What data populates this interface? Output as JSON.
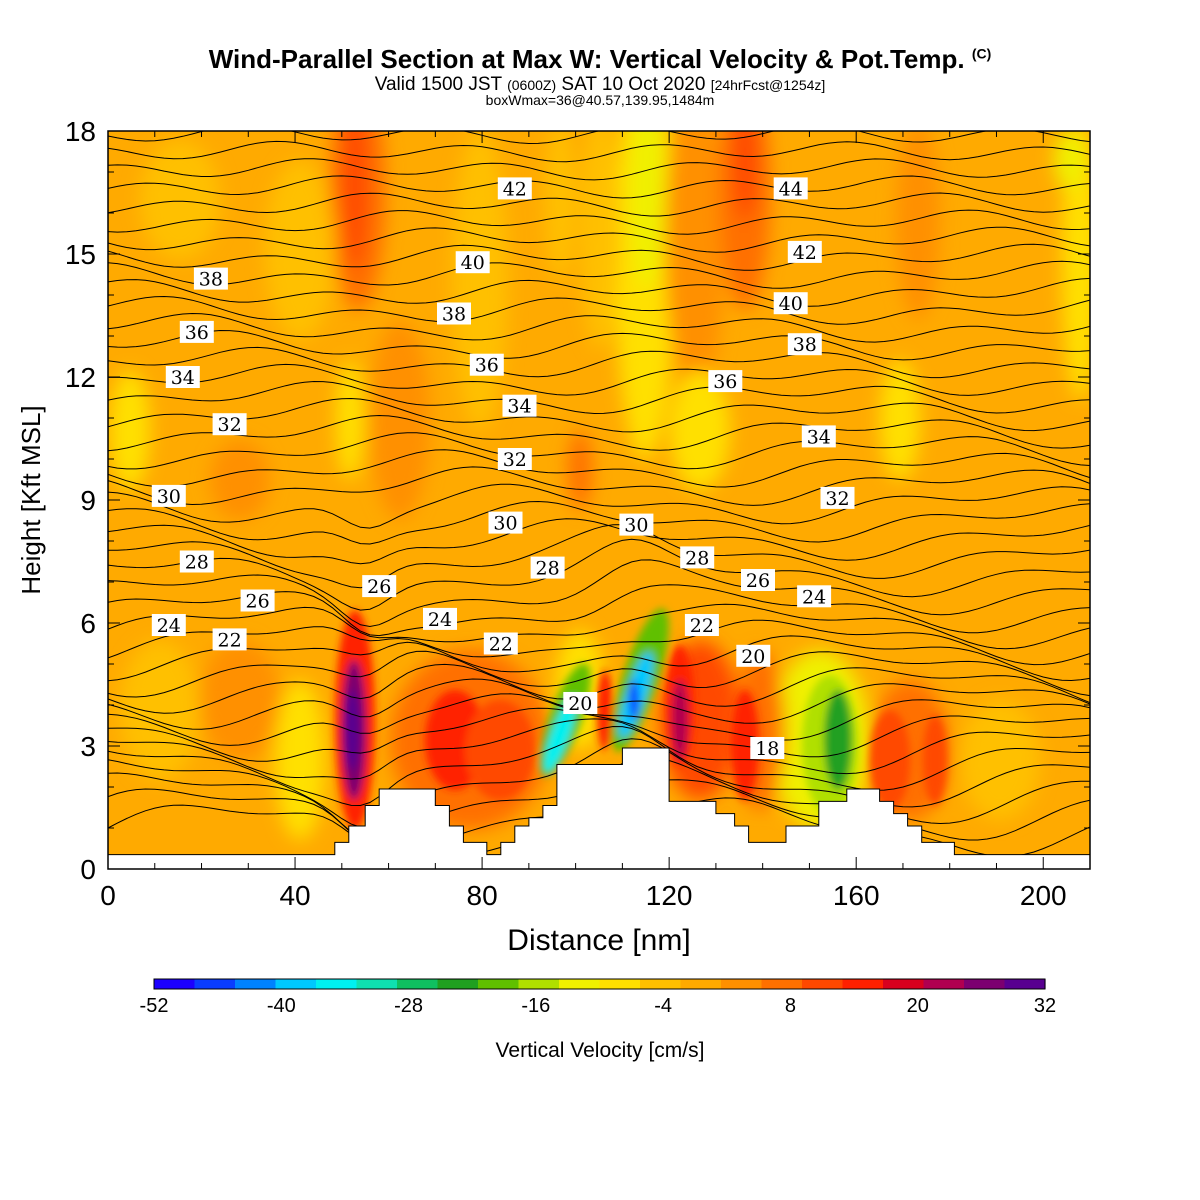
{
  "header": {
    "title_main": "Wind-Parallel Section at Max W: Vertical Velocity & Pot.Temp.",
    "title_mark": "(C)",
    "valid_a": "Valid 1500 JST",
    "valid_b": "(0600Z)",
    "valid_c": "SAT 10 Oct 2020",
    "valid_d": "[24hrFcst@1254z]",
    "box_info": "boxWmax=36@40.57,139.95,1484m"
  },
  "chart_data": {
    "type": "heatmap",
    "xlabel": "Distance [nm]",
    "ylabel": "Height [Kft MSL]",
    "xlim": [
      0,
      210
    ],
    "ylim": [
      0,
      18
    ],
    "xticks": [
      0,
      40,
      80,
      120,
      160,
      200
    ],
    "yticks": [
      0,
      3,
      6,
      9,
      12,
      15,
      18
    ],
    "colorbar": {
      "label": "Vertical Velocity [cm/s]",
      "ticks": [
        -52,
        -40,
        -28,
        -16,
        -4,
        8,
        20,
        32
      ],
      "colors": [
        "#1c00ff",
        "#0a3cff",
        "#0082ff",
        "#00c8ff",
        "#00f0f0",
        "#10e0b0",
        "#10c060",
        "#20a020",
        "#60c000",
        "#b0e000",
        "#f0f000",
        "#ffe000",
        "#ffc000",
        "#ffaa00",
        "#ff9000",
        "#ff7000",
        "#ff4800",
        "#ff2000",
        "#d8001e",
        "#b00050",
        "#7c0070",
        "#580090"
      ]
    },
    "isentrope_labels": [
      {
        "text": "42",
        "x": 87,
        "y": 16.6
      },
      {
        "text": "44",
        "x": 146,
        "y": 16.6
      },
      {
        "text": "40",
        "x": 78,
        "y": 14.8
      },
      {
        "text": "42",
        "x": 149,
        "y": 15.05
      },
      {
        "text": "38",
        "x": 22,
        "y": 14.4
      },
      {
        "text": "40",
        "x": 146,
        "y": 13.8
      },
      {
        "text": "38",
        "x": 74,
        "y": 13.55
      },
      {
        "text": "36",
        "x": 19,
        "y": 13.1
      },
      {
        "text": "38",
        "x": 149,
        "y": 12.8
      },
      {
        "text": "36",
        "x": 81,
        "y": 12.3
      },
      {
        "text": "34",
        "x": 16,
        "y": 12.0
      },
      {
        "text": "36",
        "x": 132,
        "y": 11.9
      },
      {
        "text": "34",
        "x": 88,
        "y": 11.3
      },
      {
        "text": "32",
        "x": 26,
        "y": 10.85
      },
      {
        "text": "34",
        "x": 152,
        "y": 10.55
      },
      {
        "text": "32",
        "x": 87,
        "y": 10.0
      },
      {
        "text": "30",
        "x": 13,
        "y": 9.1
      },
      {
        "text": "32",
        "x": 156,
        "y": 9.05
      },
      {
        "text": "30",
        "x": 85,
        "y": 8.45
      },
      {
        "text": "30",
        "x": 113,
        "y": 8.4
      },
      {
        "text": "28",
        "x": 19,
        "y": 7.5
      },
      {
        "text": "28",
        "x": 126,
        "y": 7.6
      },
      {
        "text": "28",
        "x": 94,
        "y": 7.35
      },
      {
        "text": "26",
        "x": 58,
        "y": 6.9
      },
      {
        "text": "26",
        "x": 139,
        "y": 7.05
      },
      {
        "text": "24",
        "x": 151,
        "y": 6.65
      },
      {
        "text": "26",
        "x": 32,
        "y": 6.55
      },
      {
        "text": "24",
        "x": 71,
        "y": 6.1
      },
      {
        "text": "24",
        "x": 13,
        "y": 5.95
      },
      {
        "text": "22",
        "x": 127,
        "y": 5.95
      },
      {
        "text": "22",
        "x": 26,
        "y": 5.6
      },
      {
        "text": "22",
        "x": 84,
        "y": 5.5
      },
      {
        "text": "20",
        "x": 138,
        "y": 5.2
      },
      {
        "text": "20",
        "x": 101,
        "y": 4.05
      },
      {
        "text": "18",
        "x": 141,
        "y": 2.95
      }
    ],
    "terrain": [
      [
        0,
        0.35
      ],
      [
        48.5,
        0.35
      ],
      [
        48.5,
        0.65
      ],
      [
        51.5,
        0.65
      ],
      [
        51.5,
        1.05
      ],
      [
        55,
        1.05
      ],
      [
        55,
        1.55
      ],
      [
        58,
        1.55
      ],
      [
        58,
        1.95
      ],
      [
        70,
        1.95
      ],
      [
        70,
        1.55
      ],
      [
        73,
        1.55
      ],
      [
        73,
        1.05
      ],
      [
        76,
        1.05
      ],
      [
        76,
        0.65
      ],
      [
        81,
        0.65
      ],
      [
        81,
        0.35
      ],
      [
        84,
        0.35
      ],
      [
        84,
        0.65
      ],
      [
        87,
        0.65
      ],
      [
        87,
        1.05
      ],
      [
        90,
        1.05
      ],
      [
        90,
        1.25
      ],
      [
        93,
        1.25
      ],
      [
        93,
        1.55
      ],
      [
        96,
        1.55
      ],
      [
        96,
        2.55
      ],
      [
        110,
        2.55
      ],
      [
        110,
        2.95
      ],
      [
        120,
        2.95
      ],
      [
        120,
        1.65
      ],
      [
        130,
        1.65
      ],
      [
        130,
        1.35
      ],
      [
        134,
        1.35
      ],
      [
        134,
        1.05
      ],
      [
        137,
        1.05
      ],
      [
        137,
        0.65
      ],
      [
        145,
        0.65
      ],
      [
        145,
        1.05
      ],
      [
        152,
        1.05
      ],
      [
        152,
        1.65
      ],
      [
        158,
        1.65
      ],
      [
        158,
        1.95
      ],
      [
        165,
        1.95
      ],
      [
        165,
        1.65
      ],
      [
        168,
        1.65
      ],
      [
        168,
        1.35
      ],
      [
        171,
        1.35
      ],
      [
        171,
        1.05
      ],
      [
        174,
        1.05
      ],
      [
        174,
        0.65
      ],
      [
        181,
        0.65
      ],
      [
        181,
        0.35
      ],
      [
        210,
        0.35
      ]
    ]
  }
}
